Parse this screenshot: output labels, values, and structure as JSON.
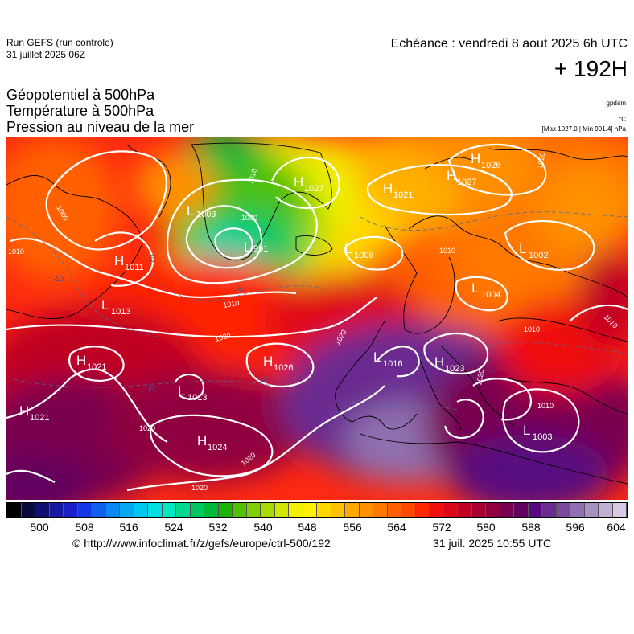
{
  "header": {
    "run_title": "Run GEFS (run controle)",
    "run_date": "31 juillet 2025 06Z",
    "valid_time": "Echéance : vendredi 8 aout 2025 6h UTC",
    "lead_time": "+ 192H"
  },
  "parameters": {
    "geopotential": "Géopotentiel à 500hPa",
    "temperature": "Température à 500hPa",
    "pressure": "Pression au niveau de la mer"
  },
  "units": {
    "geopotential": "gpdam",
    "temperature": "°C",
    "pressure": "[Max 1027.0 | Min 991.4] hPa"
  },
  "pressure_centers": [
    {
      "type": "H",
      "value": "1026"
    },
    {
      "type": "H",
      "value": "1027"
    },
    {
      "type": "H",
      "value": "1021"
    },
    {
      "type": "H",
      "value": "1027"
    },
    {
      "type": "L",
      "value": "1003"
    },
    {
      "type": "L",
      "value": "991"
    },
    {
      "type": "L",
      "value": "1006"
    },
    {
      "type": "L",
      "value": "1002"
    },
    {
      "type": "H",
      "value": "1011"
    },
    {
      "type": "L",
      "value": "1013"
    },
    {
      "type": "L",
      "value": "1004"
    },
    {
      "type": "H",
      "value": "1021"
    },
    {
      "type": "H",
      "value": "1026"
    },
    {
      "type": "L",
      "value": "1016"
    },
    {
      "type": "H",
      "value": "1023"
    },
    {
      "type": "L",
      "value": "1013"
    },
    {
      "type": "H",
      "value": "1021"
    },
    {
      "type": "H",
      "value": "1024"
    },
    {
      "type": "L",
      "value": "1003"
    }
  ],
  "isobar_labels": [
    "1000",
    "1010",
    "1010",
    "1000",
    "1010",
    "1020",
    "1020",
    "1020",
    "1010",
    "1020",
    "1020",
    "1020",
    "1010",
    "1010",
    "1010",
    "1020"
  ],
  "isotherm_labels": [
    "-20",
    "-20",
    "-10",
    "-10",
    "-10"
  ],
  "colorbar": {
    "ticks": [
      "500",
      "508",
      "516",
      "524",
      "532",
      "540",
      "548",
      "556",
      "564",
      "572",
      "580",
      "588",
      "596",
      "604"
    ],
    "colors": [
      "#000000",
      "#0a0a3c",
      "#101070",
      "#1818a0",
      "#1c20c8",
      "#1438e6",
      "#1060f0",
      "#0c88f4",
      "#08a8f0",
      "#00c8f0",
      "#00e0e0",
      "#00e8c0",
      "#00d890",
      "#00c860",
      "#00b838",
      "#18b400",
      "#50c000",
      "#80d000",
      "#a8dc00",
      "#d0e800",
      "#f0f000",
      "#fff000",
      "#ffd800",
      "#ffc000",
      "#ffa800",
      "#ff9000",
      "#ff7800",
      "#ff6000",
      "#ff4800",
      "#ff2800",
      "#f01010",
      "#d80818",
      "#c00020",
      "#a80030",
      "#900040",
      "#780050",
      "#600060",
      "#580880",
      "#6a2c90",
      "#7a4a9c",
      "#9070b0",
      "#a890c0",
      "#c0b0d4",
      "#d8c8e4"
    ]
  },
  "footer": {
    "credit": "© http://www.infoclimat.fr/z/gefs/europe/ctrl-500/192",
    "generated": "31 juil. 2025 10:55 UTC"
  }
}
